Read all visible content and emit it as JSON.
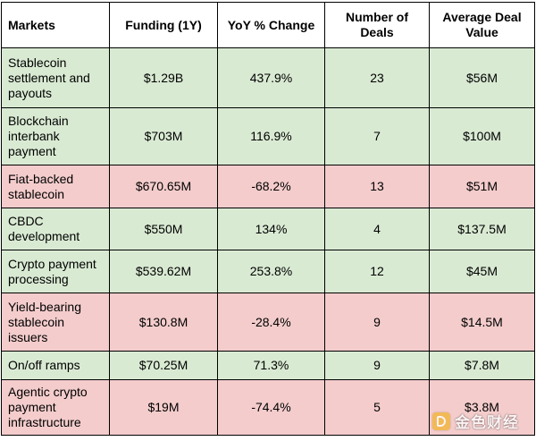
{
  "table": {
    "headers": {
      "markets": "Markets",
      "funding": "Funding (1Y)",
      "yoy": "YoY % Change",
      "deals": "Number of Deals",
      "avg": "Average Deal Value"
    },
    "rows": [
      {
        "market": "Stablecoin settlement and payouts",
        "funding": "$1.29B",
        "yoy": "437.9%",
        "deals": "23",
        "avg": "$56M",
        "status": "green"
      },
      {
        "market": "Blockchain interbank payment",
        "funding": "$703M",
        "yoy": "116.9%",
        "deals": "7",
        "avg": "$100M",
        "status": "green"
      },
      {
        "market": "Fiat-backed stablecoin",
        "funding": "$670.65M",
        "yoy": "-68.2%",
        "deals": "13",
        "avg": "$51M",
        "status": "red"
      },
      {
        "market": "CBDC development",
        "funding": "$550M",
        "yoy": "134%",
        "deals": "4",
        "avg": "$137.5M",
        "status": "green"
      },
      {
        "market": "Crypto payment processing",
        "funding": "$539.62M",
        "yoy": "253.8%",
        "deals": "12",
        "avg": "$45M",
        "status": "green"
      },
      {
        "market": "Yield-bearing stablecoin issuers",
        "funding": "$130.8M",
        "yoy": "-28.4%",
        "deals": "9",
        "avg": "$14.5M",
        "status": "red"
      },
      {
        "market": "On/off ramps",
        "funding": "$70.25M",
        "yoy": "71.3%",
        "deals": "9",
        "avg": "$7.8M",
        "status": "green"
      },
      {
        "market": "Agentic crypto payment infrastructure",
        "funding": "$19M",
        "yoy": "-74.4%",
        "deals": "5",
        "avg": "$3.8M",
        "status": "red"
      }
    ]
  },
  "colors": {
    "positive_row": "#d9ead3",
    "negative_row": "#f4cccc",
    "watermark_logo": "#f2b437"
  },
  "watermark": {
    "text": "金色财经",
    "icon": "jinse-logo-icon"
  }
}
